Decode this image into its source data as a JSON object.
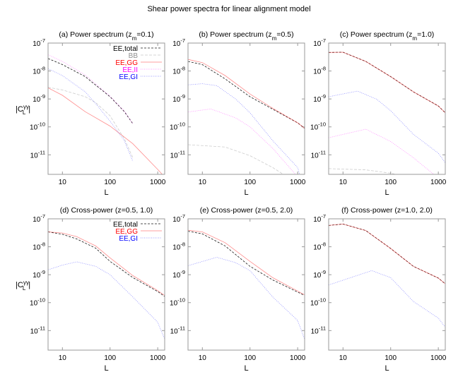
{
  "chart_data": {
    "title": "Shear power spectra for linear alignment model",
    "type": "line",
    "x_scale": "log",
    "y_scale": "log",
    "xlim": [
      5,
      1400
    ],
    "ylim": [
      2e-12,
      1e-07
    ],
    "x_ticks": [
      10,
      100,
      1000
    ],
    "x_tick_labels": [
      "10",
      "100",
      "1000"
    ],
    "y_ticks": [
      1e-07,
      1e-08,
      1e-09,
      1e-10,
      1e-11
    ],
    "y_tick_labels": [
      [
        "10",
        "-7"
      ],
      [
        "10",
        "-8"
      ],
      [
        "10",
        "-9"
      ],
      [
        "10",
        "-10"
      ],
      [
        "10",
        "-11"
      ]
    ],
    "xlabel": "L",
    "ylabel": {
      "open": "|C",
      "sub": "L",
      "sup": "γγ",
      "close": "|"
    },
    "grid": false,
    "series_styles": {
      "EE,total": {
        "color": "#000000",
        "dash": "3,2"
      },
      "BB": {
        "color": "#909090",
        "dash": "4,2"
      },
      "EE,GG": {
        "color": "#ff0000",
        "dash": ""
      },
      "EE,II": {
        "color": "#ff00ff",
        "dash": "1,1.5"
      },
      "EE,GI": {
        "color": "#0000ff",
        "dash": "1,1.5"
      }
    },
    "panels": [
      {
        "title": [
          "(a) Power spectrum (z",
          "m",
          "=0.1)"
        ],
        "legend": true,
        "legend_position": "top-right",
        "show_ylabel": true,
        "series": [
          {
            "name": "EE,total",
            "points": [
              [
                5,
                2.8e-08
              ],
              [
                10,
                1.7e-08
              ],
              [
                30,
                6.3e-09
              ],
              [
                100,
                1.2e-09
              ],
              [
                200,
                3.5e-10
              ],
              [
                300,
                1.3e-10
              ]
            ]
          },
          {
            "name": "BB",
            "points": [
              [
                5,
                2.6e-09
              ],
              [
                10,
                2.1e-09
              ],
              [
                30,
                1.2e-09
              ],
              [
                50,
                7.4e-10
              ],
              [
                100,
                2.5e-10
              ],
              [
                200,
                3.7e-11
              ],
              [
                300,
                7.9e-12
              ]
            ]
          },
          {
            "name": "EE,GG",
            "points": [
              [
                5,
                2.5e-09
              ],
              [
                10,
                1.35e-09
              ],
              [
                30,
                3.5e-10
              ],
              [
                100,
                1.07e-10
              ],
              [
                300,
                2.5e-11
              ],
              [
                1000,
                3e-12
              ],
              [
                1400,
                1.6e-12
              ]
            ]
          },
          {
            "name": "EE,II",
            "points": [
              [
                5,
                3.8e-08
              ],
              [
                10,
                2.2e-08
              ],
              [
                30,
                7.2e-09
              ],
              [
                100,
                1.25e-09
              ],
              [
                200,
                3.6e-10
              ],
              [
                300,
                1.3e-10
              ]
            ]
          },
          {
            "name": "EE,GI",
            "points": [
              [
                5,
                1.2e-08
              ],
              [
                10,
                6.9e-09
              ],
              [
                30,
                1.8e-09
              ],
              [
                50,
                6.8e-10
              ],
              [
                100,
                1.6e-10
              ],
              [
                200,
                3.2e-11
              ],
              [
                300,
                5.8e-12
              ]
            ]
          }
        ]
      },
      {
        "title": [
          "(b) Power spectrum (z",
          "m",
          "=0.5)"
        ],
        "legend": false,
        "show_ylabel": false,
        "series": [
          {
            "name": "EE,total",
            "points": [
              [
                5,
                2.2e-08
              ],
              [
                10,
                1.7e-08
              ],
              [
                30,
                5.2e-09
              ],
              [
                100,
                1.2e-09
              ],
              [
                300,
                4.3e-10
              ],
              [
                1000,
                1.4e-10
              ],
              [
                1400,
                8.9e-11
              ]
            ]
          },
          {
            "name": "BB",
            "points": [
              [
                5,
                2.3e-11
              ],
              [
                30,
                1.9e-11
              ],
              [
                100,
                9.3e-12
              ],
              [
                300,
                3.5e-12
              ],
              [
                500,
                2e-12
              ]
            ]
          },
          {
            "name": "EE,GG",
            "points": [
              [
                5,
                2.6e-08
              ],
              [
                10,
                2e-08
              ],
              [
                30,
                6.9e-09
              ],
              [
                100,
                1.5e-09
              ],
              [
                300,
                4.6e-10
              ],
              [
                1000,
                1.4e-10
              ],
              [
                1400,
                8.9e-11
              ]
            ]
          },
          {
            "name": "EE,II",
            "points": [
              [
                5,
                3.4e-10
              ],
              [
                15,
                4.4e-10
              ],
              [
                50,
                2.1e-10
              ],
              [
                100,
                1e-10
              ],
              [
                300,
                1.7e-11
              ],
              [
                900,
                2e-12
              ]
            ]
          },
          {
            "name": "EE,GI",
            "points": [
              [
                5,
                3.2e-09
              ],
              [
                10,
                3.5e-09
              ],
              [
                20,
                3e-09
              ],
              [
                50,
                1e-09
              ],
              [
                100,
                3.2e-10
              ],
              [
                300,
                3.2e-11
              ],
              [
                1000,
                3.5e-12
              ],
              [
                1100,
                2e-12
              ]
            ]
          }
        ]
      },
      {
        "title": [
          "(c) Power spectrum (z",
          "m",
          "=1.0)"
        ],
        "legend": false,
        "show_ylabel": false,
        "series": [
          {
            "name": "EE,total",
            "points": [
              [
                5,
                4.6e-08
              ],
              [
                10,
                4.7e-08
              ],
              [
                30,
                2.2e-08
              ],
              [
                100,
                6.3e-09
              ],
              [
                300,
                1.8e-09
              ],
              [
                1000,
                5.6e-10
              ],
              [
                1400,
                3.2e-10
              ]
            ]
          },
          {
            "name": "BB",
            "points": [
              [
                5,
                3.2e-12
              ],
              [
                30,
                2.9e-12
              ],
              [
                100,
                2.2e-12
              ],
              [
                130,
                2e-12
              ]
            ]
          },
          {
            "name": "EE,GG",
            "points": [
              [
                5,
                4.6e-08
              ],
              [
                10,
                4.7e-08
              ],
              [
                30,
                2.2e-08
              ],
              [
                100,
                6.3e-09
              ],
              [
                300,
                1.8e-09
              ],
              [
                1000,
                5.6e-10
              ],
              [
                1400,
                3.2e-10
              ]
            ]
          },
          {
            "name": "EE,II",
            "points": [
              [
                5,
                4.1e-11
              ],
              [
                30,
                8.3e-11
              ],
              [
                100,
                3e-11
              ],
              [
                300,
                7.9e-12
              ],
              [
                800,
                2e-12
              ]
            ]
          },
          {
            "name": "EE,GI",
            "points": [
              [
                5,
                1.2e-09
              ],
              [
                20,
                1.9e-09
              ],
              [
                50,
                1e-09
              ],
              [
                100,
                3.8e-10
              ],
              [
                300,
                5.4e-11
              ],
              [
                1000,
                1.15e-11
              ],
              [
                1400,
                5.2e-12
              ]
            ]
          }
        ]
      },
      {
        "title": [
          "(d) Cross-power (z=0.5, 1.0)",
          "",
          ""
        ],
        "legend": true,
        "legend_position": "top-right",
        "show_ylabel": true,
        "series": [
          {
            "name": "EE,total",
            "points": [
              [
                5,
                3.4e-08
              ],
              [
                10,
                2.8e-08
              ],
              [
                20,
                1.9e-08
              ],
              [
                50,
                8.9e-09
              ],
              [
                100,
                3e-09
              ],
              [
                300,
                7.9e-10
              ],
              [
                1000,
                2.5e-10
              ],
              [
                1400,
                1.65e-10
              ]
            ]
          },
          {
            "name": "EE,GG",
            "points": [
              [
                5,
                3.4e-08
              ],
              [
                10,
                3.1e-08
              ],
              [
                20,
                2.3e-08
              ],
              [
                50,
                1.07e-08
              ],
              [
                100,
                4e-09
              ],
              [
                300,
                9.3e-10
              ],
              [
                1000,
                2.7e-10
              ],
              [
                1400,
                1.8e-10
              ]
            ]
          },
          {
            "name": "EE,GI",
            "points": [
              [
                5,
                1.5e-09
              ],
              [
                10,
                2.2e-09
              ],
              [
                20,
                2.9e-09
              ],
              [
                50,
                2e-09
              ],
              [
                100,
                1e-09
              ],
              [
                300,
                1.6e-10
              ],
              [
                1000,
                2e-11
              ],
              [
                1400,
                5e-12
              ]
            ]
          }
        ]
      },
      {
        "title": [
          "(e) Cross-power (z=0.5, 2.0)",
          "",
          ""
        ],
        "legend": false,
        "show_ylabel": false,
        "series": [
          {
            "name": "EE,total",
            "points": [
              [
                5,
                3.6e-08
              ],
              [
                10,
                2.9e-08
              ],
              [
                30,
                1.07e-08
              ],
              [
                100,
                2e-09
              ],
              [
                300,
                6.5e-10
              ],
              [
                1400,
                1.8e-10
              ]
            ]
          },
          {
            "name": "EE,GG",
            "points": [
              [
                5,
                3.9e-08
              ],
              [
                10,
                3.4e-08
              ],
              [
                30,
                1.4e-08
              ],
              [
                100,
                3e-09
              ],
              [
                300,
                7.8e-10
              ],
              [
                1400,
                1.9e-10
              ]
            ]
          },
          {
            "name": "EE,GI",
            "points": [
              [
                5,
                2.1e-09
              ],
              [
                20,
                4.2e-09
              ],
              [
                50,
                2.7e-09
              ],
              [
                100,
                1.4e-09
              ],
              [
                300,
                1.6e-10
              ],
              [
                1000,
                2.3e-11
              ],
              [
                1400,
                4.9e-12
              ]
            ]
          }
        ]
      },
      {
        "title": [
          "(f) Cross-power (z=1.0, 2.0)",
          "",
          ""
        ],
        "legend": false,
        "show_ylabel": false,
        "series": [
          {
            "name": "EE,total",
            "points": [
              [
                5,
                5.8e-08
              ],
              [
                10,
                6.5e-08
              ],
              [
                30,
                3.8e-08
              ],
              [
                100,
                8.7e-09
              ],
              [
                300,
                2e-09
              ],
              [
                1000,
                7.6e-10
              ],
              [
                1400,
                4.7e-10
              ]
            ]
          },
          {
            "name": "EE,GG",
            "points": [
              [
                5,
                5.8e-08
              ],
              [
                10,
                6.5e-08
              ],
              [
                30,
                3.8e-08
              ],
              [
                100,
                8.7e-09
              ],
              [
                300,
                2e-09
              ],
              [
                1000,
                7.6e-10
              ],
              [
                1400,
                4.7e-10
              ]
            ]
          },
          {
            "name": "EE,GI",
            "points": [
              [
                5,
                4.3e-10
              ],
              [
                40,
                1.4e-09
              ],
              [
                100,
                7.8e-10
              ],
              [
                300,
                1.1e-10
              ],
              [
                1000,
                2.8e-11
              ],
              [
                1400,
                1.3e-11
              ]
            ]
          }
        ]
      }
    ]
  }
}
